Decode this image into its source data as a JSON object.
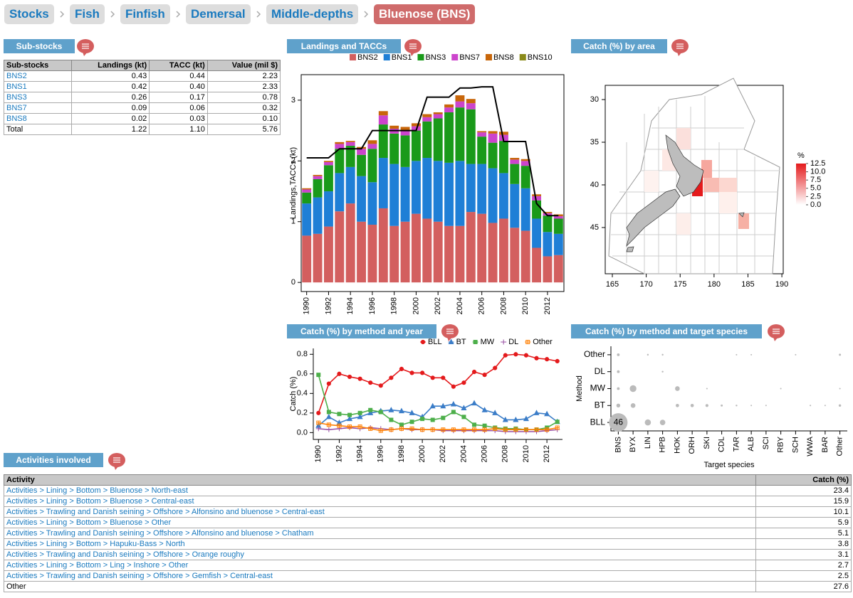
{
  "breadcrumb": [
    "Stocks",
    "Fish",
    "Finfish",
    "Demersal",
    "Middle-depths",
    "Bluenose (BNS)"
  ],
  "panels": {
    "sub_stocks": "Sub-stocks",
    "landings": "Landings and TACCs",
    "area": "Catch (%) by area",
    "method_year": "Catch (%) by method and year",
    "method_species": "Catch (%) by method and target species",
    "activities": "Activities involved"
  },
  "sub_stocks": {
    "columns": [
      "Sub-stocks",
      "Landings (kt)",
      "TACC (kt)",
      "Value (mil $)"
    ],
    "rows": [
      [
        "BNS2",
        "0.43",
        "0.44",
        "2.23"
      ],
      [
        "BNS1",
        "0.42",
        "0.40",
        "2.33"
      ],
      [
        "BNS3",
        "0.26",
        "0.17",
        "0.78"
      ],
      [
        "BNS7",
        "0.09",
        "0.06",
        "0.32"
      ],
      [
        "BNS8",
        "0.02",
        "0.03",
        "0.10"
      ],
      [
        "Total",
        "1.22",
        "1.10",
        "5.76"
      ]
    ]
  },
  "chart_data": [
    {
      "type": "bar",
      "stacked": true,
      "ylabel": "Landings,TACCs (kt)",
      "categories": [
        "1990",
        null,
        "1992",
        null,
        "1994",
        null,
        "1996",
        null,
        "1998",
        null,
        "2000",
        null,
        "2002",
        null,
        "2004",
        null,
        "2006",
        null,
        "2008",
        null,
        "2010",
        null,
        "2012",
        null
      ],
      "series": [
        {
          "name": "BNS2",
          "color": "#d35f5f",
          "values": [
            0.77,
            0.8,
            0.92,
            1.17,
            1.3,
            1.0,
            0.95,
            1.22,
            0.93,
            1.0,
            1.13,
            1.05,
            1.0,
            0.93,
            0.93,
            1.16,
            1.13,
            0.98,
            1.05,
            0.9,
            0.85,
            0.57,
            0.43,
            0.45
          ]
        },
        {
          "name": "BNS1",
          "color": "#1f7fd6",
          "values": [
            0.53,
            0.6,
            0.58,
            0.63,
            0.6,
            0.75,
            0.7,
            0.83,
            1.02,
            0.9,
            0.87,
            1.0,
            1.0,
            1.04,
            1.07,
            0.79,
            0.82,
            0.9,
            0.75,
            0.72,
            0.7,
            0.48,
            0.4,
            0.35
          ]
        },
        {
          "name": "BNS3",
          "color": "#1a9a1a",
          "values": [
            0.18,
            0.3,
            0.43,
            0.4,
            0.35,
            0.35,
            0.55,
            0.55,
            0.5,
            0.52,
            0.5,
            0.6,
            0.7,
            0.83,
            0.88,
            0.9,
            0.45,
            0.42,
            0.53,
            0.33,
            0.37,
            0.3,
            0.27,
            0.25
          ]
        },
        {
          "name": "BNS7",
          "color": "#cc44cc",
          "values": [
            0.05,
            0.05,
            0.05,
            0.08,
            0.06,
            0.1,
            0.08,
            0.15,
            0.08,
            0.08,
            0.07,
            0.07,
            0.07,
            0.08,
            0.1,
            0.1,
            0.07,
            0.15,
            0.1,
            0.07,
            0.08,
            0.07,
            0.04,
            0.04
          ]
        },
        {
          "name": "BNS8",
          "color": "#c8660a",
          "values": [
            0.02,
            0.02,
            0.02,
            0.03,
            0.02,
            0.03,
            0.06,
            0.07,
            0.05,
            0.06,
            0.05,
            0.05,
            0.03,
            0.05,
            0.1,
            0.07,
            0.02,
            0.04,
            0.05,
            0.03,
            0.03,
            0.03,
            0.02,
            0.03
          ]
        },
        {
          "name": "BNS10",
          "color": "#8a8a1a",
          "values": [
            0,
            0,
            0,
            0,
            0,
            0,
            0,
            0,
            0,
            0,
            0,
            0,
            0,
            0,
            0,
            0,
            0,
            0,
            0,
            0,
            0,
            0,
            0,
            0
          ]
        }
      ],
      "lines": [
        {
          "color": "#000000",
          "values": [
            2.05,
            2.05,
            2.05,
            2.2,
            2.2,
            2.2,
            2.5,
            2.5,
            2.5,
            2.5,
            2.5,
            3.05,
            3.05,
            3.05,
            3.2,
            3.2,
            3.22,
            3.22,
            2.32,
            2.32,
            2.32,
            1.3,
            1.1,
            1.1
          ]
        }
      ],
      "ylim": [
        -0.15,
        3.42
      ],
      "yticks": [
        0,
        1,
        2,
        3
      ]
    },
    {
      "type": "line",
      "ylabel": "Catch (%)",
      "categories": [
        "1990",
        null,
        "1992",
        null,
        "1994",
        null,
        "1996",
        null,
        "1998",
        null,
        "2000",
        null,
        "2002",
        null,
        "2004",
        null,
        "2006",
        null,
        "2008",
        null,
        "2010",
        null,
        "2012",
        null
      ],
      "series": [
        {
          "name": "BLL",
          "color": "#e41a1c",
          "values": [
            0.2,
            0.5,
            0.6,
            0.57,
            0.55,
            0.51,
            0.48,
            0.56,
            0.65,
            0.61,
            0.61,
            0.56,
            0.56,
            0.47,
            0.51,
            0.62,
            0.59,
            0.66,
            0.79,
            0.8,
            0.79,
            0.76,
            0.75,
            0.73
          ]
        },
        {
          "name": "BT",
          "color": "#3b7dc8",
          "values": [
            0.07,
            0.16,
            0.1,
            0.14,
            0.16,
            0.2,
            0.22,
            0.23,
            0.22,
            0.2,
            0.16,
            0.27,
            0.27,
            0.29,
            0.25,
            0.3,
            0.23,
            0.2,
            0.13,
            0.13,
            0.14,
            0.2,
            0.19,
            0.11
          ]
        },
        {
          "name": "MW",
          "color": "#4daf4a",
          "values": [
            0.59,
            0.21,
            0.19,
            0.18,
            0.2,
            0.23,
            0.21,
            0.13,
            0.08,
            0.11,
            0.14,
            0.13,
            0.15,
            0.21,
            0.16,
            0.08,
            0.07,
            0.05,
            0.04,
            0.04,
            0.03,
            0.03,
            0.05,
            0.11
          ]
        },
        {
          "name": "DL",
          "color": "#984ea3",
          "values": [
            0.04,
            0.03,
            0.04,
            0.05,
            0.04,
            0.05,
            0.04,
            0.03,
            0.04,
            0.03,
            0.03,
            0.03,
            0.02,
            0.02,
            0.02,
            0.02,
            0.02,
            0.02,
            0.01,
            0.01,
            0.01,
            0.01,
            0.02,
            0.03
          ]
        },
        {
          "name": "Other",
          "color": "#ff7f00",
          "values": [
            0.1,
            0.08,
            0.07,
            0.06,
            0.06,
            0.04,
            0.02,
            0.03,
            0.04,
            0.04,
            0.03,
            0.03,
            0.03,
            0.03,
            0.03,
            0.03,
            0.03,
            0.04,
            0.03,
            0.03,
            0.03,
            0.03,
            0.03,
            0.05
          ]
        }
      ],
      "ylim": [
        -0.07,
        0.86
      ],
      "yticks": [
        {
          "value": 0,
          "label": "0.0"
        },
        0.2,
        0.4,
        0.6,
        0.8
      ]
    },
    {
      "type": "bubble",
      "xlabel": "Target species",
      "ylabel": "Method",
      "color": "#bbbbbb",
      "x_categories": [
        "BNS",
        "BYX",
        "LIN",
        "HPB",
        "HOK",
        "ORH",
        "SKI",
        "CDL",
        "TAR",
        "ALB",
        "SCI",
        "RBY",
        "SCH",
        "WWA",
        "BAR",
        "Other"
      ],
      "y_categories": [
        "BLL",
        "BT",
        "MW",
        "DL",
        "Other"
      ],
      "points": [
        {
          "x": "BNS",
          "y": "BLL",
          "size": 46,
          "label": "46"
        },
        {
          "x": "BNS",
          "y": "BT",
          "size": 2
        },
        {
          "x": "BNS",
          "y": "MW",
          "size": 1
        },
        {
          "x": "BNS",
          "y": "DL",
          "size": 1
        },
        {
          "x": "BNS",
          "y": "Other",
          "size": 1
        },
        {
          "x": "BYX",
          "y": "BT",
          "size": 3
        },
        {
          "x": "BYX",
          "y": "MW",
          "size": 6
        },
        {
          "x": "LIN",
          "y": "BLL",
          "size": 5
        },
        {
          "x": "LIN",
          "y": "Other",
          "size": 0.4
        },
        {
          "x": "HPB",
          "y": "BLL",
          "size": 4
        },
        {
          "x": "HPB",
          "y": "DL",
          "size": 0.4
        },
        {
          "x": "HPB",
          "y": "Other",
          "size": 0.4
        },
        {
          "x": "HOK",
          "y": "BT",
          "size": 1.5
        },
        {
          "x": "HOK",
          "y": "MW",
          "size": 3
        },
        {
          "x": "ORH",
          "y": "BT",
          "size": 1.5
        },
        {
          "x": "SKI",
          "y": "BT",
          "size": 1.2
        },
        {
          "x": "SKI",
          "y": "MW",
          "size": 0.3
        },
        {
          "x": "CDL",
          "y": "BT",
          "size": 0.6
        },
        {
          "x": "TAR",
          "y": "BT",
          "size": 0.4
        },
        {
          "x": "TAR",
          "y": "Other",
          "size": 0.1
        },
        {
          "x": "ALB",
          "y": "Other",
          "size": 0.2
        },
        {
          "x": "ALB",
          "y": "BT",
          "size": 0.1
        },
        {
          "x": "SCI",
          "y": "BT",
          "size": 0.2
        },
        {
          "x": "RBY",
          "y": "MW",
          "size": 0.2
        },
        {
          "x": "SCH",
          "y": "Other",
          "size": 0.1
        },
        {
          "x": "WWA",
          "y": "BT",
          "size": 0.3
        },
        {
          "x": "BAR",
          "y": "BT",
          "size": 0.2
        },
        {
          "x": "Other",
          "y": "Other",
          "size": 0.6
        },
        {
          "x": "Other",
          "y": "BT",
          "size": 0.8
        },
        {
          "x": "Other",
          "y": "MW",
          "size": 0.3
        }
      ]
    }
  ],
  "map": {
    "xlim": [
      163.95,
      190.2
    ],
    "ylim": [
      28.33,
      50.42
    ],
    "xticks": [
      165,
      170,
      175,
      180,
      185,
      190
    ],
    "yticks": [
      30,
      35,
      40,
      45
    ],
    "legend_title": "%",
    "legend_ticks": [
      {
        "value": 12.5,
        "label": "12.5"
      },
      {
        "value": 10,
        "label": "10.0"
      },
      {
        "value": 7.5,
        "label": "7.5"
      },
      {
        "value": 5,
        "label": "5.0"
      },
      {
        "value": 2.5,
        "label": "2.5"
      },
      {
        "value": 0,
        "label": "0.0"
      }
    ]
  },
  "activities": {
    "columns": [
      "Activity",
      "Catch (%)"
    ],
    "rows": [
      [
        "Activities > Lining > Bottom > Bluenose > North-east",
        "23.4"
      ],
      [
        "Activities > Lining > Bottom > Bluenose > Central-east",
        "15.9"
      ],
      [
        "Activities > Trawling and Danish seining > Offshore > Alfonsino and bluenose > Central-east",
        "10.1"
      ],
      [
        "Activities > Lining > Bottom > Bluenose > Other",
        "5.9"
      ],
      [
        "Activities > Trawling and Danish seining > Offshore > Alfonsino and bluenose > Chatham",
        "5.1"
      ],
      [
        "Activities > Lining > Bottom > Hapuku-Bass > North",
        "3.8"
      ],
      [
        "Activities > Trawling and Danish seining > Offshore > Orange roughy",
        "3.1"
      ],
      [
        "Activities > Lining > Bottom > Ling > Inshore > Other",
        "2.7"
      ],
      [
        "Activities > Trawling and Danish seining > Offshore > Gemfish > Central-east",
        "2.5"
      ],
      [
        "Other",
        "27.6"
      ]
    ]
  }
}
